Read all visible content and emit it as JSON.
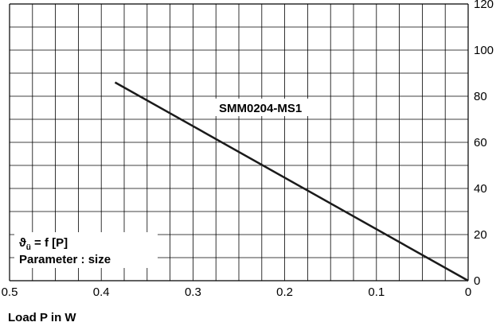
{
  "chart_data": {
    "type": "line",
    "x": [
      0.385,
      0.0
    ],
    "series": [
      {
        "name": "SMM0204-MS1",
        "values": [
          86,
          0
        ]
      }
    ],
    "xlim": [
      0.5,
      0.0
    ],
    "ylim": [
      0,
      120
    ],
    "x_ticks": [
      0.5,
      0.4,
      0.3,
      0.2,
      0.1,
      0
    ],
    "x_tick_labels": [
      "0.5",
      "0.4",
      "0.3",
      "0.2",
      "0.1",
      "0"
    ],
    "y_ticks": [
      0,
      20,
      40,
      60,
      80,
      100,
      120
    ],
    "y_tick_labels": [
      "0",
      "20",
      "40",
      "60",
      "80",
      "100",
      "120"
    ],
    "xlabel": "Load P in W",
    "ylabel": "",
    "grid": true,
    "x_minor_per_major": 4,
    "y_minor_per_major": 2,
    "annotations": {
      "formula_symbol": "ϑ",
      "formula_subscript": "ü",
      "formula_rest": " = f [P]",
      "parameter": "Parameter : size"
    },
    "colors": {
      "line": "#1a1a1a",
      "grid": "#000000"
    }
  }
}
